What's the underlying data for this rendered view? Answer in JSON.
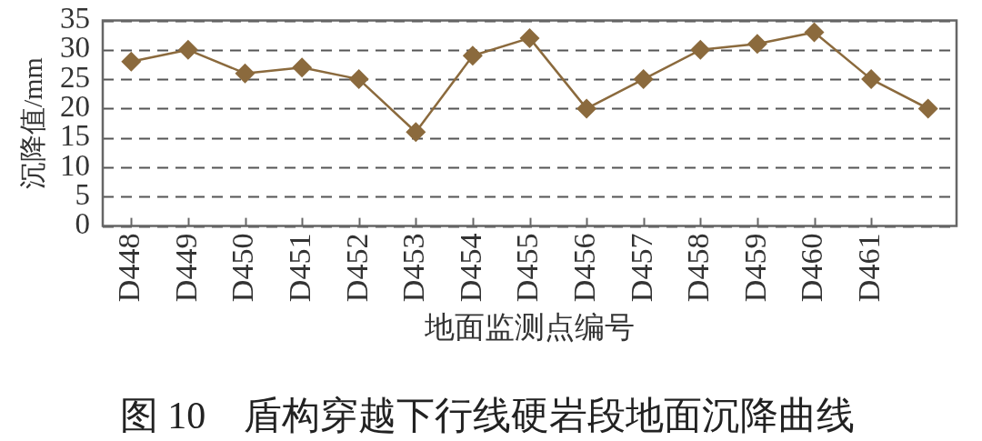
{
  "chart_data": {
    "type": "line",
    "title": "图 10　盾构穿越下行线硬岩段地面沉降曲线",
    "xlabel": "地面监测点编号",
    "ylabel": "沉降值/mm",
    "categories": [
      "D448",
      "D449",
      "D450",
      "D451",
      "D452",
      "D453",
      "D454",
      "D455",
      "D456",
      "D457",
      "D458",
      "D459",
      "D460",
      "D461",
      null
    ],
    "values": [
      28,
      30,
      26,
      27,
      25,
      16,
      29,
      32,
      20,
      25,
      30,
      31,
      33,
      25,
      20
    ],
    "color": "#8b6a3d",
    "ylim": [
      0,
      35
    ],
    "yticks": [
      0,
      5,
      10,
      15,
      20,
      25,
      30,
      35
    ],
    "grid": "y",
    "marker": "diamond",
    "line_style": "solid"
  }
}
